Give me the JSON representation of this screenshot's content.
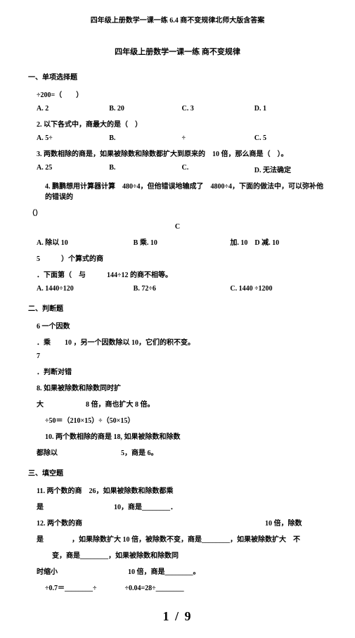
{
  "header": "四年级上册数学一课一练 6.4 商不变规律北师大版含答案",
  "subtitle": "四年级上册数学一课一练 商不变规律",
  "section1": "一、单项选择题",
  "q1_stem": "÷200=（　　）",
  "q1_opts": {
    "a": "A. 2",
    "b": "B. 20",
    "c": "C. 3",
    "d": "D. 1"
  },
  "q2_stem": "2. 以下各式中，商最大的是（　）",
  "q2_opts": {
    "a": "A. 5÷",
    "b": "B.",
    "c": "÷",
    "d": "C. 5"
  },
  "q3_stem": "3. 两数相除的商是，如果被除数和除数都扩大到原来的　10 倍，那么商是（　）。",
  "q3_opts": {
    "a": "A. 25",
    "b": "B.",
    "c": "C.",
    "d": "D. 无法确定"
  },
  "q4_l1": "4. 鹏鹏想用计算器计算　480÷4，但他错误地输成了　4800÷4，下面的做法中，可以弥补他的错误的",
  "q4_l2": "（）",
  "q4_center": "C",
  "q4_opts": {
    "a": "A. 除以 10",
    "b": "B 乘. 10",
    "c": "加. 10　D 减. 10"
  },
  "q5_l1": "5　　　）个算式的商",
  "q5_l2": "．下面第（　与　　　144÷12 的商不相等。",
  "q5_opts": {
    "a": "A. 1440÷120",
    "b": "B. 72÷6",
    "c": "C. 1440 ÷1200"
  },
  "section2": "二、判断题",
  "q6_l1": "6 一个因数",
  "q6_l2": "．乘　　10 ，另一个因数除以 10，它们的积不变。",
  "q7_l1": "7",
  "q7_l2": "．判断对错",
  "q8_l1": "8. 如果被除数和除数同时扩",
  "q8_l2": "大　　　　　　8 倍，商也扩大 8 倍。",
  "q9": "÷50＝（210×15）÷（50×15）",
  "q10_l1": "10. 两个数相除的商是 18, 如果被除数和除数",
  "q10_l2": "都除以　　　　　　　　　5，商是 6。",
  "section3": "三、填空题",
  "q11_l1": "11. 两个数的商　26，如果被除数和除数都乘",
  "q11_l2": "是　　　　　　　　　　10，商是________．",
  "q12_l1": "12. 两个数的商　　　　　　　　　　　　　　　　　　　　　　　　　　10 倍，除数",
  "q12_l2": "是　　　　，如果除数扩大 10 倍，被除数不变，商是________，如果被除数扩大　不",
  "q12_l3": "　变，商是________，如果被除数和除数同",
  "q12_l4": "时缩小　　　　　　　　　　10 倍，商是________。",
  "q13": "÷0.7＝________÷　　　　÷0.04=28÷________",
  "pagefoot": "1  /  9"
}
